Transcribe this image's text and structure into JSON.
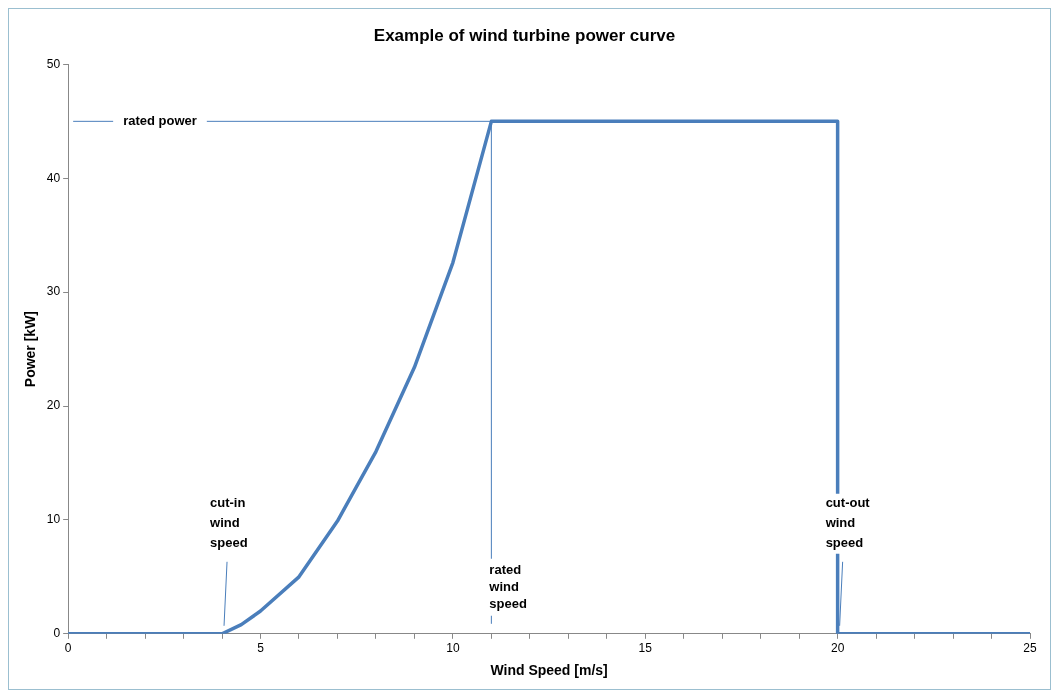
{
  "chart_data": {
    "type": "line",
    "title": "Example of wind turbine power curve",
    "xlabel": "Wind Speed [m/s]",
    "ylabel": "Power [kW]",
    "series": [
      {
        "color": "#4a7ebb",
        "x": [
          0,
          4,
          4.5,
          5,
          6,
          7,
          8,
          9,
          10,
          11,
          20,
          20,
          25
        ],
        "values": [
          0,
          0,
          0.8,
          2,
          5,
          9.9,
          16,
          23.4,
          32.6,
          45,
          45,
          0,
          0
        ]
      }
    ],
    "xlim": [
      0,
      25
    ],
    "ylim": [
      0,
      50
    ],
    "xticks": [
      0,
      {
        "value": 1,
        "label": null
      },
      {
        "value": 2,
        "label": null
      },
      {
        "value": 3,
        "label": null
      },
      {
        "value": 4,
        "label": null
      },
      5,
      {
        "value": 6,
        "label": null
      },
      {
        "value": 7,
        "label": null
      },
      {
        "value": 8,
        "label": null
      },
      {
        "value": 9,
        "label": null
      },
      10,
      {
        "value": 11,
        "label": null
      },
      {
        "value": 12,
        "label": null
      },
      {
        "value": 13,
        "label": null
      },
      {
        "value": 14,
        "label": null
      },
      15,
      {
        "value": 16,
        "label": null
      },
      {
        "value": 17,
        "label": null
      },
      {
        "value": 18,
        "label": null
      },
      {
        "value": 19,
        "label": null
      },
      20,
      {
        "value": 21,
        "label": null
      },
      {
        "value": 22,
        "label": null
      },
      {
        "value": 23,
        "label": null
      },
      {
        "value": 24,
        "label": null
      },
      25
    ],
    "yticks": [
      0,
      10,
      20,
      30,
      40,
      50
    ],
    "grid": false,
    "legend": false,
    "marker": "none",
    "line_style": "solid",
    "ref_lines": [
      {
        "axis": "y",
        "value": 45,
        "label": "rated power"
      },
      {
        "axis": "x",
        "value": 11,
        "label": "rated wind speed"
      }
    ],
    "annotations": [
      {
        "text": "cut-in wind speed",
        "x": 4,
        "y": 0
      },
      {
        "text": "cut-out wind speed",
        "x": 20,
        "y": 0
      }
    ]
  }
}
